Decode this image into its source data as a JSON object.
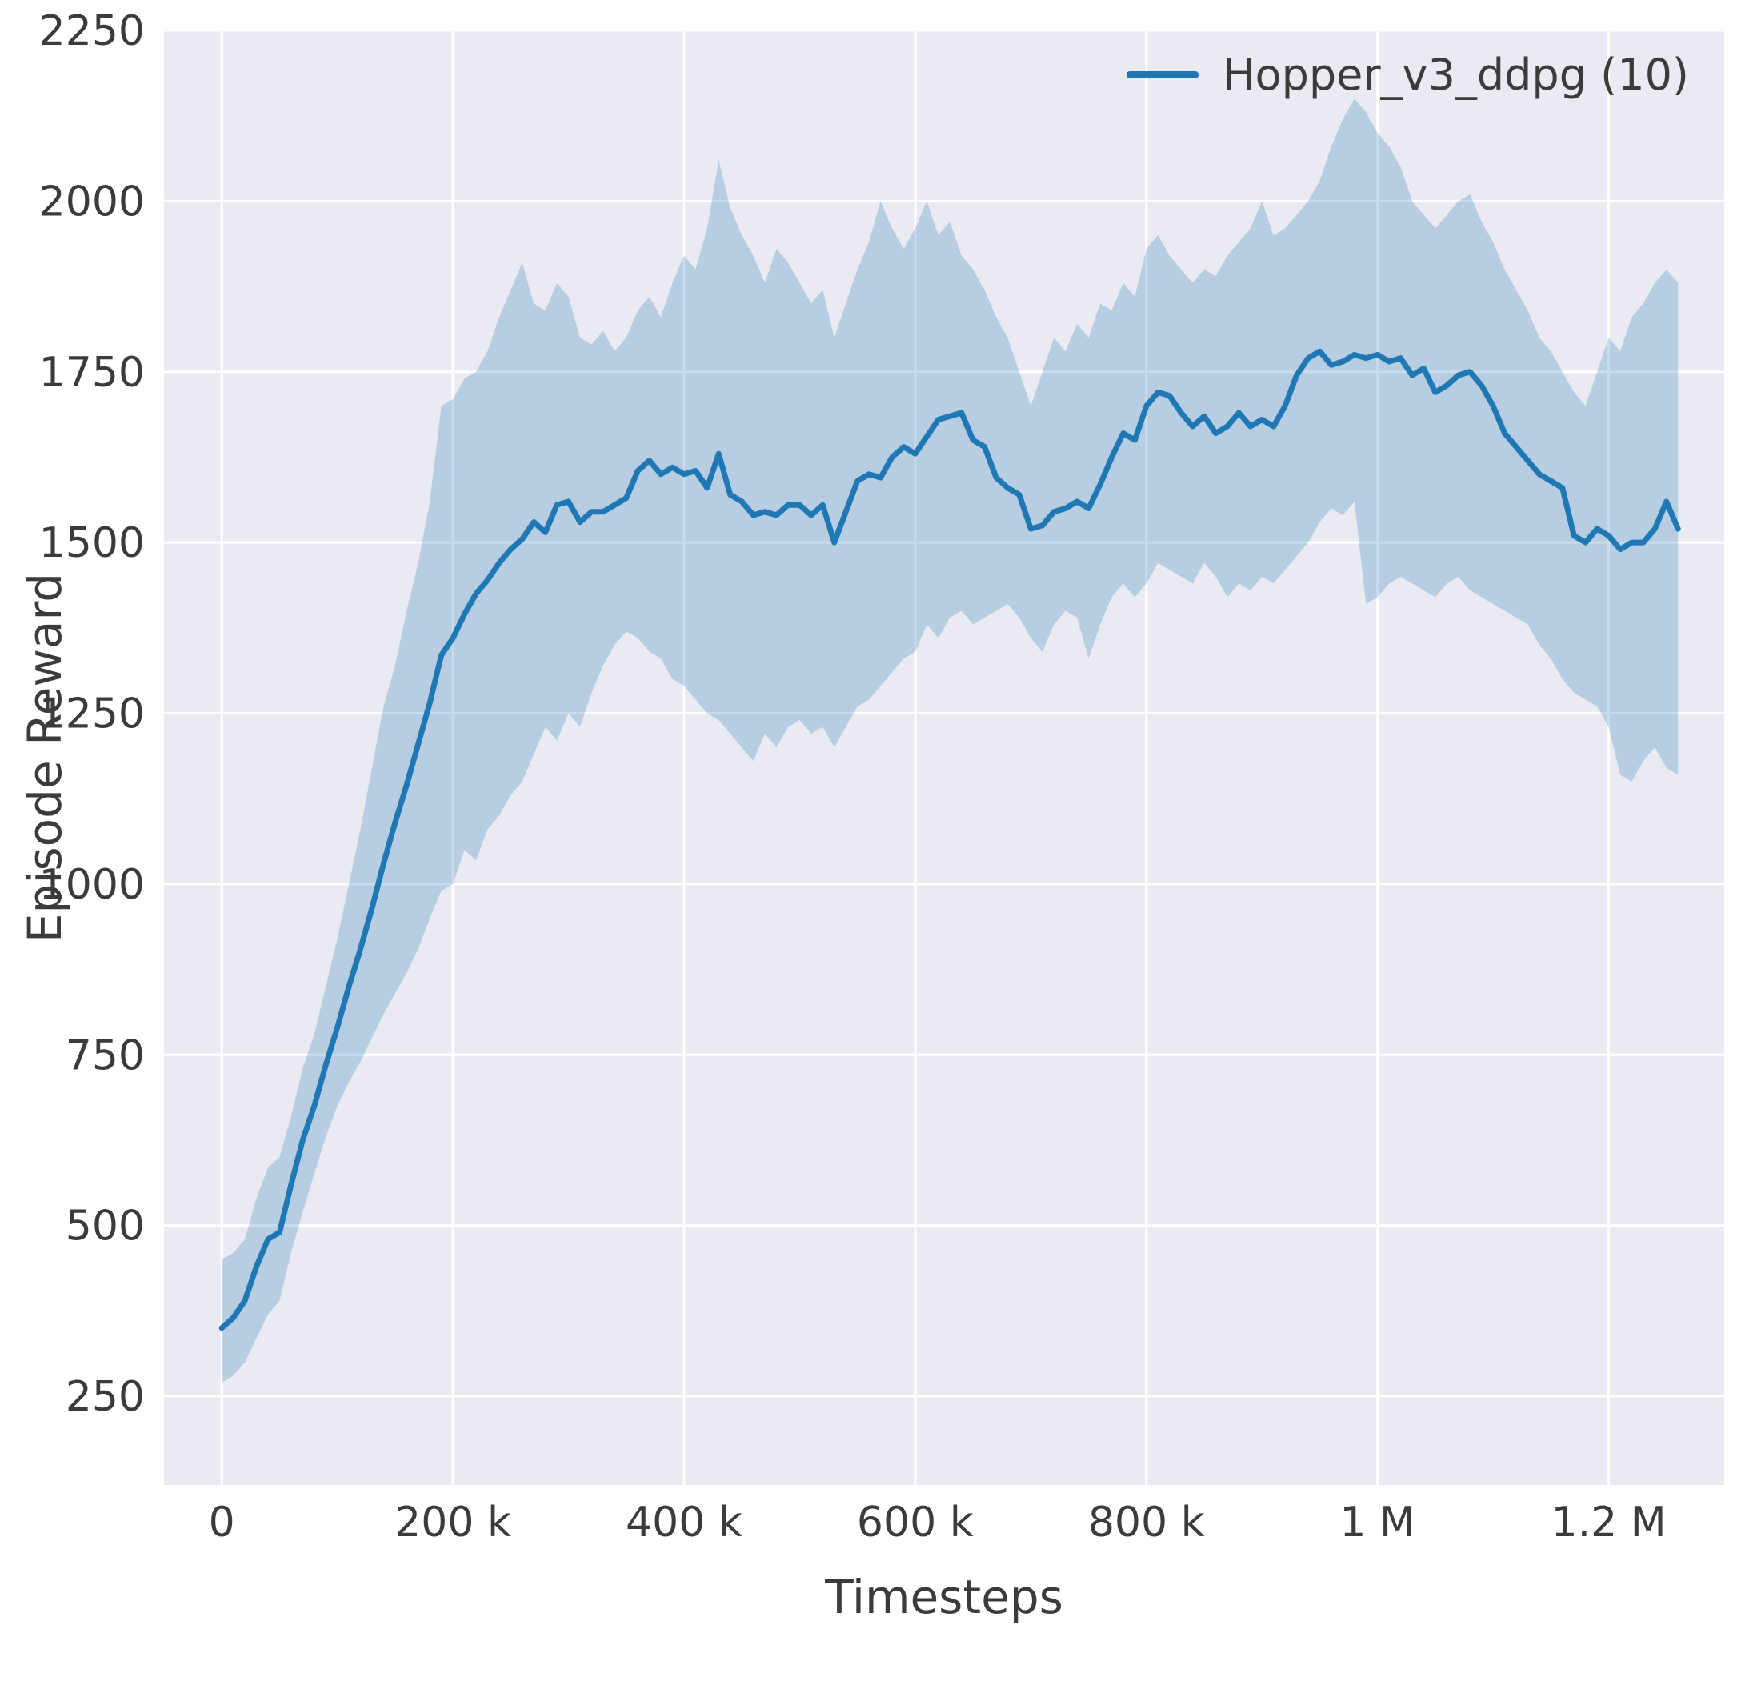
{
  "chart_data": {
    "type": "line",
    "title": "",
    "xlabel": "Timesteps",
    "ylabel": "Episode Reward",
    "grid": true,
    "legend_position": "upper right",
    "xlim": [
      -50000,
      1300000
    ],
    "ylim": [
      120,
      2250
    ],
    "x_ticks": [
      {
        "v": 0,
        "label": "0"
      },
      {
        "v": 200000,
        "label": "200 k"
      },
      {
        "v": 400000,
        "label": "400 k"
      },
      {
        "v": 600000,
        "label": "600 k"
      },
      {
        "v": 800000,
        "label": "800 k"
      },
      {
        "v": 1000000,
        "label": "1 M"
      },
      {
        "v": 1200000,
        "label": "1.2 M"
      }
    ],
    "y_ticks": [
      {
        "v": 250,
        "label": "250"
      },
      {
        "v": 500,
        "label": "500"
      },
      {
        "v": 750,
        "label": "750"
      },
      {
        "v": 1000,
        "label": "1000"
      },
      {
        "v": 1250,
        "label": "1250"
      },
      {
        "v": 1500,
        "label": "1500"
      },
      {
        "v": 1750,
        "label": "1750"
      },
      {
        "v": 2000,
        "label": "2000"
      },
      {
        "v": 2250,
        "label": "2250"
      }
    ],
    "colors": {
      "plot_bg": "#eaeaf2",
      "grid": "#ffffff",
      "text": "#3b3b3b",
      "line": "#1f77b4",
      "band_opacity": 0.25
    },
    "series": [
      {
        "name": "Hopper_v3_ddpg (10)",
        "color": "#1f77b4",
        "x": [
          0,
          10000,
          20000,
          30000,
          40000,
          50000,
          60000,
          70000,
          80000,
          90000,
          100000,
          110000,
          120000,
          130000,
          140000,
          150000,
          160000,
          170000,
          180000,
          190000,
          200000,
          210000,
          220000,
          230000,
          240000,
          250000,
          260000,
          270000,
          280000,
          290000,
          300000,
          310000,
          320000,
          330000,
          340000,
          350000,
          360000,
          370000,
          380000,
          390000,
          400000,
          410000,
          420000,
          430000,
          440000,
          450000,
          460000,
          470000,
          480000,
          490000,
          500000,
          510000,
          520000,
          530000,
          540000,
          550000,
          560000,
          570000,
          580000,
          590000,
          600000,
          610000,
          620000,
          630000,
          640000,
          650000,
          660000,
          670000,
          680000,
          690000,
          700000,
          710000,
          720000,
          730000,
          740000,
          750000,
          760000,
          770000,
          780000,
          790000,
          800000,
          810000,
          820000,
          830000,
          840000,
          850000,
          860000,
          870000,
          880000,
          890000,
          900000,
          910000,
          920000,
          930000,
          940000,
          950000,
          960000,
          970000,
          980000,
          990000,
          1000000,
          1010000,
          1020000,
          1030000,
          1040000,
          1050000,
          1060000,
          1070000,
          1080000,
          1090000,
          1100000,
          1110000,
          1120000,
          1130000,
          1140000,
          1150000,
          1160000,
          1170000,
          1180000,
          1190000,
          1200000,
          1210000,
          1220000,
          1230000,
          1240000,
          1250000,
          1260000
        ],
        "mean": [
          350,
          365,
          390,
          440,
          480,
          490,
          560,
          625,
          675,
          735,
          790,
          850,
          905,
          965,
          1030,
          1090,
          1145,
          1205,
          1265,
          1335,
          1360,
          1395,
          1425,
          1445,
          1470,
          1490,
          1505,
          1530,
          1515,
          1555,
          1560,
          1530,
          1545,
          1545,
          1555,
          1565,
          1605,
          1620,
          1600,
          1610,
          1600,
          1605,
          1580,
          1630,
          1570,
          1560,
          1540,
          1545,
          1540,
          1555,
          1555,
          1540,
          1555,
          1500,
          1545,
          1590,
          1600,
          1595,
          1625,
          1640,
          1630,
          1655,
          1680,
          1685,
          1690,
          1650,
          1640,
          1595,
          1580,
          1570,
          1520,
          1525,
          1545,
          1550,
          1560,
          1550,
          1585,
          1625,
          1660,
          1650,
          1700,
          1720,
          1715,
          1690,
          1670,
          1685,
          1660,
          1670,
          1690,
          1670,
          1680,
          1670,
          1700,
          1745,
          1770,
          1780,
          1760,
          1765,
          1775,
          1770,
          1775,
          1765,
          1770,
          1745,
          1755,
          1720,
          1730,
          1745,
          1750,
          1730,
          1700,
          1660,
          1640,
          1620,
          1600,
          1590,
          1580,
          1510,
          1500,
          1520,
          1510,
          1490,
          1500,
          1500,
          1520,
          1560,
          1520
        ],
        "lower": [
          270,
          280,
          300,
          335,
          370,
          390,
          460,
          520,
          575,
          630,
          675,
          710,
          740,
          775,
          810,
          840,
          870,
          905,
          950,
          990,
          1000,
          1050,
          1035,
          1080,
          1100,
          1130,
          1150,
          1190,
          1230,
          1210,
          1250,
          1230,
          1280,
          1320,
          1350,
          1370,
          1360,
          1340,
          1330,
          1300,
          1290,
          1270,
          1250,
          1240,
          1220,
          1200,
          1180,
          1220,
          1200,
          1230,
          1240,
          1220,
          1230,
          1200,
          1230,
          1260,
          1270,
          1290,
          1310,
          1330,
          1340,
          1380,
          1360,
          1390,
          1400,
          1380,
          1390,
          1400,
          1410,
          1390,
          1360,
          1340,
          1380,
          1400,
          1390,
          1330,
          1380,
          1420,
          1440,
          1420,
          1440,
          1470,
          1460,
          1450,
          1440,
          1470,
          1450,
          1420,
          1440,
          1430,
          1450,
          1440,
          1460,
          1480,
          1500,
          1530,
          1550,
          1540,
          1560,
          1410,
          1420,
          1440,
          1450,
          1440,
          1430,
          1420,
          1440,
          1450,
          1430,
          1420,
          1410,
          1400,
          1390,
          1380,
          1350,
          1330,
          1300,
          1280,
          1270,
          1260,
          1230,
          1160,
          1150,
          1180,
          1200,
          1170,
          1160
        ],
        "upper": [
          450,
          460,
          480,
          540,
          585,
          600,
          660,
          730,
          780,
          850,
          920,
          1000,
          1080,
          1170,
          1260,
          1320,
          1400,
          1470,
          1560,
          1700,
          1710,
          1740,
          1750,
          1780,
          1830,
          1870,
          1910,
          1850,
          1840,
          1880,
          1860,
          1800,
          1790,
          1810,
          1780,
          1800,
          1840,
          1860,
          1830,
          1880,
          1920,
          1900,
          1960,
          2060,
          1990,
          1950,
          1920,
          1880,
          1930,
          1910,
          1880,
          1850,
          1870,
          1800,
          1850,
          1900,
          1940,
          2000,
          1960,
          1930,
          1960,
          2000,
          1950,
          1970,
          1920,
          1900,
          1870,
          1830,
          1800,
          1750,
          1700,
          1750,
          1800,
          1780,
          1820,
          1800,
          1850,
          1840,
          1880,
          1860,
          1930,
          1950,
          1920,
          1900,
          1880,
          1900,
          1890,
          1920,
          1940,
          1960,
          2000,
          1950,
          1960,
          1980,
          2000,
          2030,
          2080,
          2120,
          2150,
          2130,
          2100,
          2080,
          2050,
          2000,
          1980,
          1960,
          1980,
          2000,
          2010,
          1970,
          1940,
          1900,
          1870,
          1840,
          1800,
          1780,
          1750,
          1720,
          1700,
          1750,
          1800,
          1780,
          1830,
          1850,
          1880,
          1900,
          1880
        ]
      }
    ]
  }
}
